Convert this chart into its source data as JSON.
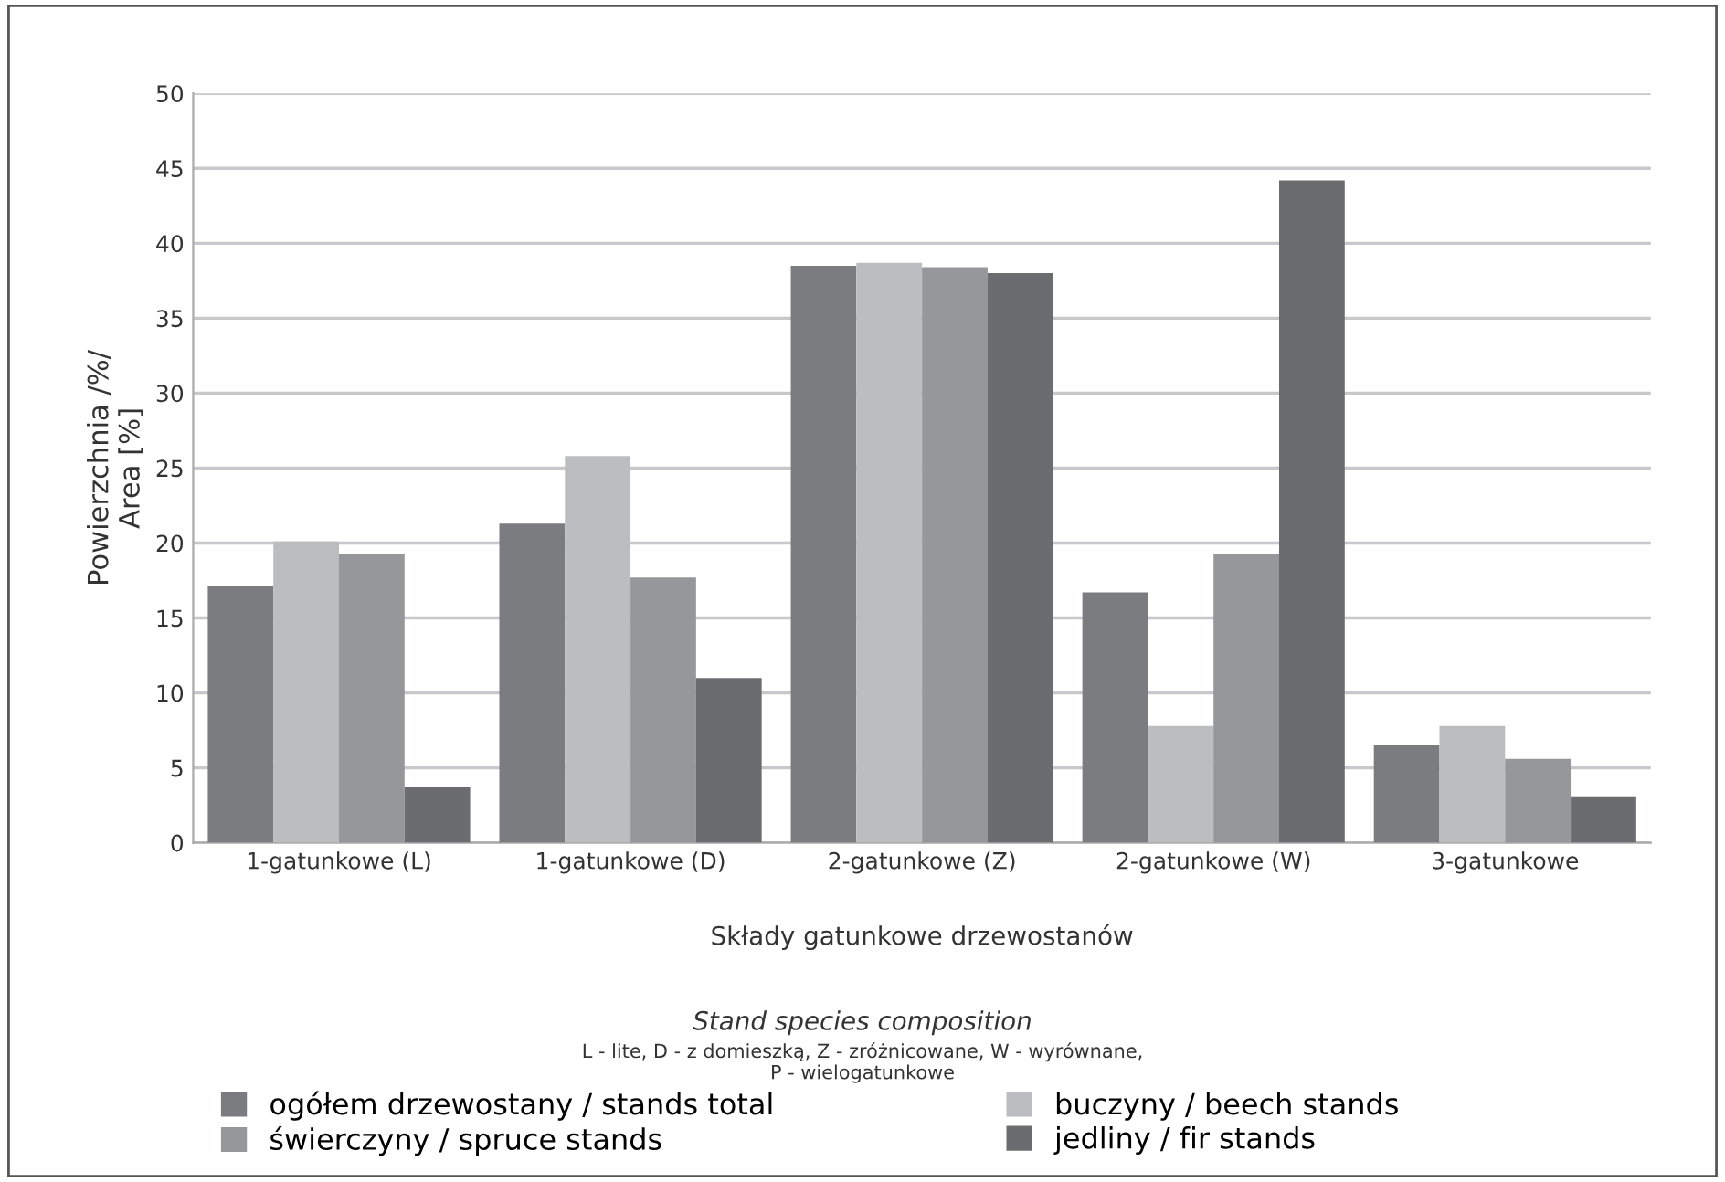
{
  "chart_data": {
    "type": "bar",
    "categories": [
      "1-gatunkowe (L)",
      "1-gatunkowe (D)",
      "2-gatunkowe (Z)",
      "2-gatunkowe (W)",
      "3-gatunkowe"
    ],
    "series": [
      {
        "name": "ogółem drzewostany / stands total",
        "color": "#7b7c80",
        "values": [
          17.1,
          21.3,
          38.5,
          16.7,
          6.5
        ]
      },
      {
        "name": "buczyny / beech stands",
        "color": "#bcbdc1",
        "values": [
          20.1,
          25.8,
          38.7,
          7.8,
          7.8
        ]
      },
      {
        "name": "świerczyny / spruce stands",
        "color": "#96979b",
        "values": [
          19.3,
          17.7,
          38.4,
          19.3,
          5.6
        ]
      },
      {
        "name": "jedliny / fir stands",
        "color": "#6b6c70",
        "values": [
          3.7,
          11.0,
          38.0,
          44.2,
          3.1
        ]
      }
    ],
    "ylabel": "Powierzchnia /%/\nArea [%]",
    "xlabel": "Składy gatunkowe drzewostanów",
    "annotations": [
      "Stand species composition",
      "L - lite, D - z domieszką, Z - zróżnicowane, W - wyrównane,\nP - wielogatunkowe"
    ],
    "ylim": [
      0,
      50
    ],
    "yticks": [
      0,
      5,
      10,
      15,
      20,
      25,
      30,
      35,
      40,
      45,
      50
    ],
    "grid": "y",
    "legend": "bottom"
  }
}
